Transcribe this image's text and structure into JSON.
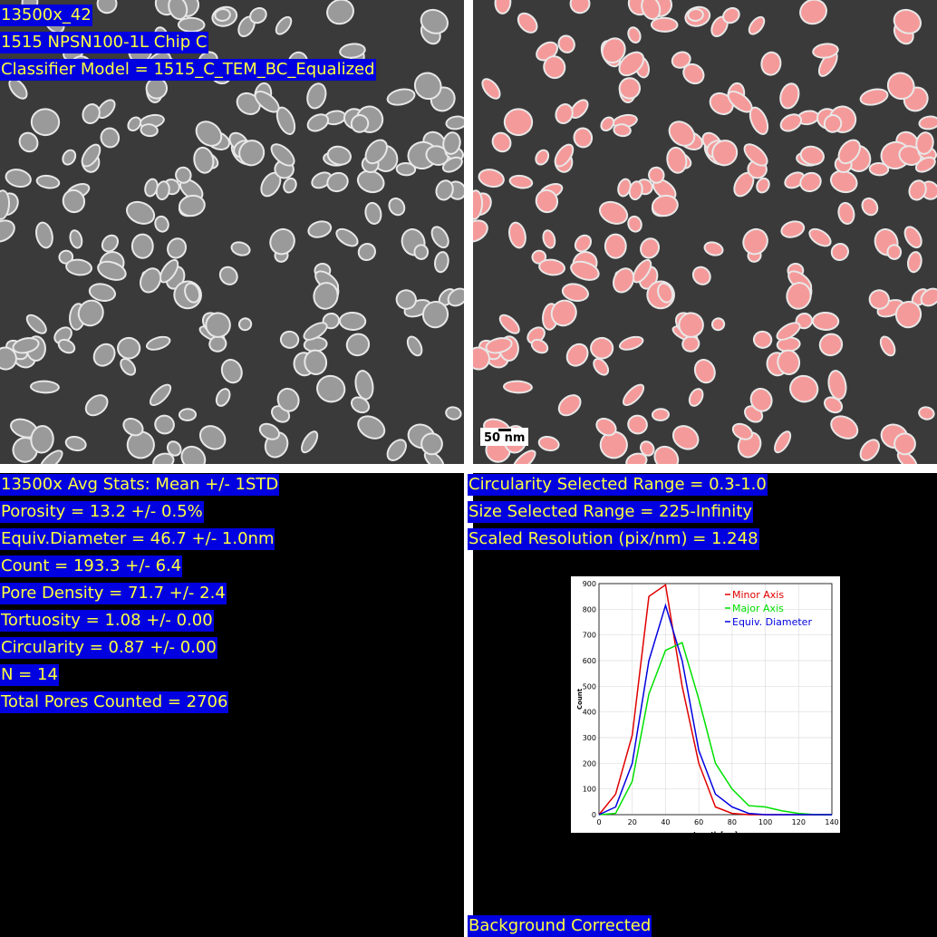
{
  "left_image_labels": [
    "13500x_42",
    "1515 NPSN100-1L Chip C",
    "Classifier Model = 1515_C_TEM_BC_Equalized"
  ],
  "scale_bar": "50 nm",
  "stats": [
    "13500x Avg Stats: Mean +/- 1STD",
    "Porosity = 13.2 +/- 0.5%",
    "Equiv.Diameter = 46.7 +/- 1.0nm",
    "Count = 193.3 +/- 6.4",
    "Pore Density = 71.7 +/- 2.4",
    "Tortuosity = 1.08 +/- 0.00",
    "Circularity = 0.87 +/- 0.00",
    "N = 14",
    "Total Pores Counted = 2706"
  ],
  "settings": [
    "Circularity Selected Range = 0.3-1.0",
    "Size Selected Range = 225-Infinity",
    "Scaled Resolution (pix/nm) = 1.248"
  ],
  "footer": "Background Corrected",
  "chart_data": {
    "type": "line",
    "x_label": "Length [nm]",
    "y_label": "Count",
    "x": [
      0,
      10,
      20,
      30,
      40,
      50,
      60,
      70,
      80,
      90,
      100,
      110,
      120,
      130,
      140
    ],
    "series": [
      {
        "name": "Minor Axis",
        "color": "#e00000",
        "values": [
          0,
          80,
          310,
          850,
          895,
          500,
          200,
          30,
          5,
          0,
          0,
          0,
          0,
          0,
          0
        ]
      },
      {
        "name": "Major Axis",
        "color": "#00e000",
        "values": [
          0,
          5,
          130,
          470,
          640,
          670,
          450,
          200,
          100,
          35,
          30,
          15,
          5,
          0,
          0
        ]
      },
      {
        "name": "Equiv. Diameter",
        "color": "#0000e0",
        "values": [
          0,
          30,
          200,
          600,
          815,
          600,
          250,
          80,
          30,
          5,
          0,
          0,
          0,
          0,
          0
        ]
      }
    ],
    "xlim": [
      0,
      140
    ],
    "ylim": [
      0,
      900
    ],
    "xticks": [
      0,
      20,
      40,
      60,
      80,
      100,
      120,
      140
    ],
    "yticks": [
      0,
      100,
      200,
      300,
      400,
      500,
      600,
      700,
      800,
      900
    ],
    "grid": true,
    "legend": "upper right"
  }
}
